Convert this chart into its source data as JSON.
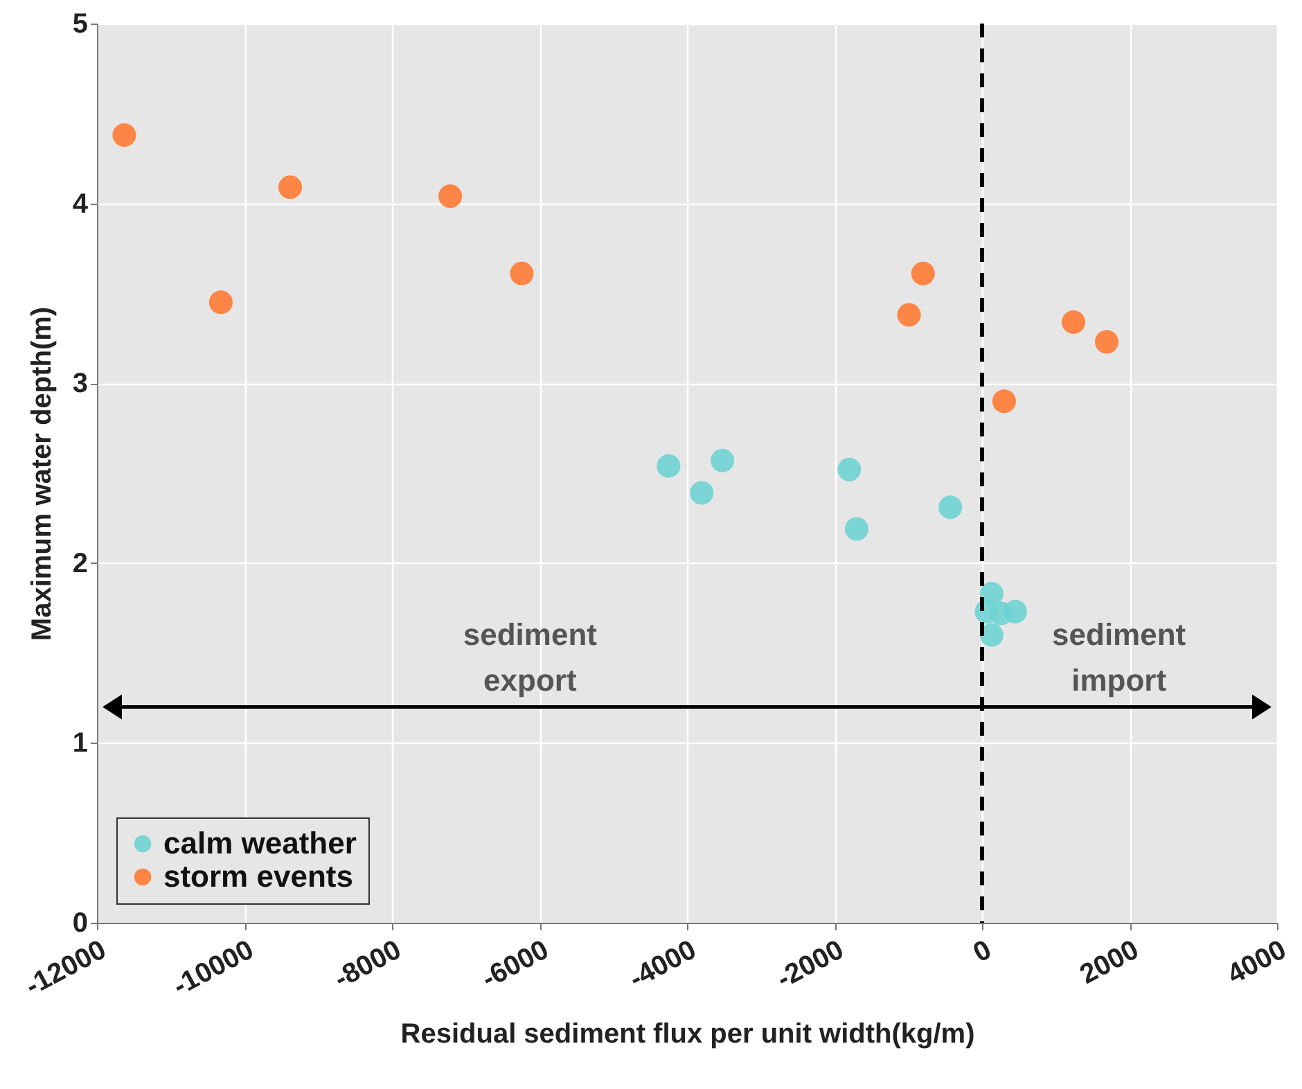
{
  "chart_data": {
    "type": "scatter",
    "xlabel": "Residual sediment flux per unit width(kg/m)",
    "ylabel": "Maximum water depth(m)",
    "xlim": [
      -12000,
      4000
    ],
    "xticks": [
      -12000,
      -10000,
      -8000,
      -6000,
      -4000,
      -2000,
      0,
      2000,
      4000
    ],
    "ylim": [
      0,
      5
    ],
    "yticks": [
      0,
      1,
      2,
      3,
      4,
      5
    ],
    "series": [
      {
        "name": "calm weather",
        "color": "#6fd3d3",
        "x": [
          -4250,
          -3800,
          -3520,
          -1800,
          -1700,
          -430,
          130,
          60,
          260,
          450,
          130
        ],
        "values": [
          2.54,
          2.39,
          2.57,
          2.52,
          2.19,
          2.31,
          1.83,
          1.73,
          1.72,
          1.73,
          1.6
        ]
      },
      {
        "name": "storm events",
        "color": "#ff7a33",
        "x": [
          -11630,
          -10320,
          -9380,
          -7210,
          -6240,
          -990,
          -800,
          300,
          1240,
          1690
        ],
        "values": [
          4.38,
          3.45,
          4.09,
          4.04,
          3.61,
          3.38,
          3.61,
          2.9,
          3.34,
          3.23
        ]
      }
    ],
    "ref_lines": [
      {
        "axis": "x",
        "value": 0,
        "color": "#000000",
        "line_style": "dashed"
      }
    ],
    "annotations": [
      "sediment export",
      "sediment import"
    ],
    "grid": true,
    "legend": "bottom left",
    "marker": "circle"
  }
}
